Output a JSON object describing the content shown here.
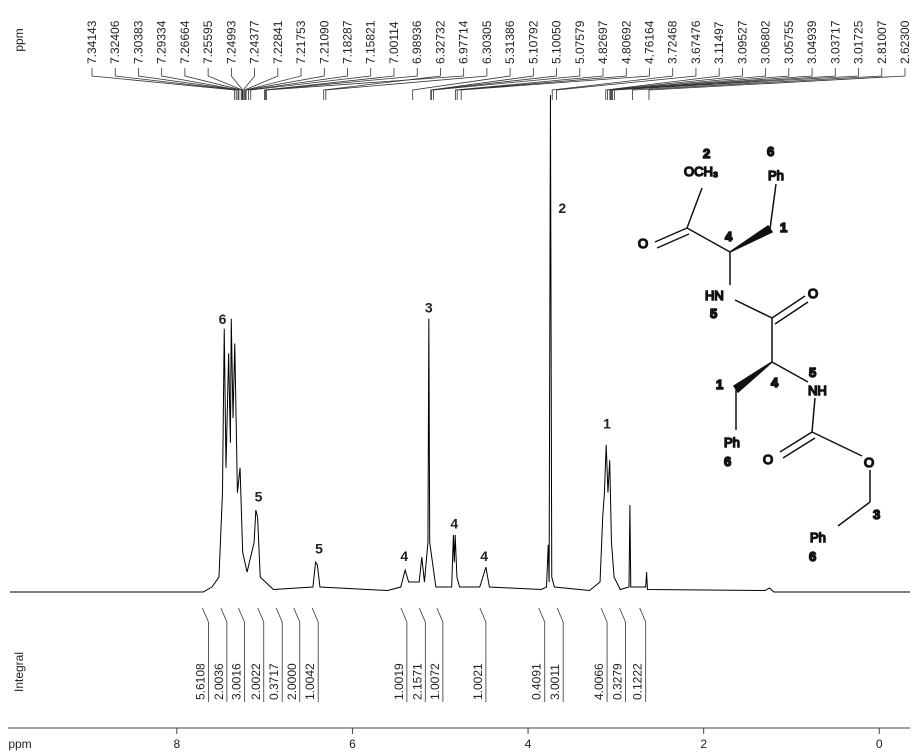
{
  "chart_data": {
    "type": "nmr",
    "xlabel": "ppm",
    "peak_axis_label": "ppm",
    "integral_label": "Integral",
    "xlim": [
      9.9,
      -0.35
    ],
    "ylim": [
      0,
      100
    ],
    "xticks": [
      8,
      6,
      4,
      2,
      0
    ],
    "color": "#000000",
    "x": [
      9.9,
      7.7,
      7.6,
      7.52,
      7.48,
      7.46,
      7.44,
      7.41,
      7.39,
      7.38,
      7.36,
      7.34,
      7.31,
      7.28,
      7.25,
      7.2,
      7.12,
      7.1,
      7.08,
      7.05,
      6.9,
      6.45,
      6.42,
      6.4,
      6.37,
      5.6,
      5.45,
      5.4,
      5.36,
      5.24,
      5.21,
      5.18,
      5.14,
      5.13,
      5.12,
      5.05,
      4.87,
      4.85,
      4.84,
      4.83,
      4.81,
      4.78,
      4.55,
      4.48,
      4.44,
      3.85,
      3.79,
      3.77,
      3.76,
      3.745,
      3.73,
      3.7,
      3.3,
      3.18,
      3.15,
      3.13,
      3.11,
      3.09,
      3.07,
      3.05,
      3.02,
      2.95,
      2.85,
      2.84,
      2.83,
      2.66,
      2.65,
      2.64,
      1.3,
      1.25,
      1.2,
      -0.35
    ],
    "values": [
      0,
      0,
      1,
      3,
      20,
      53,
      25,
      48,
      30,
      55,
      35,
      50,
      20,
      25,
      8,
      4,
      10,
      16.5,
      15,
      3,
      0.5,
      1,
      6,
      5.5,
      1,
      0.3,
      1,
      4.4,
      2,
      2,
      7,
      2,
      10,
      55,
      10,
      1,
      1,
      11.5,
      6,
      11.5,
      3,
      1,
      1,
      5,
      1,
      0.5,
      1,
      9.5,
      2,
      100,
      3,
      1,
      0.3,
      2,
      15,
      20,
      29.6,
      20,
      26.5,
      10,
      3,
      0.5,
      1,
      17.5,
      1,
      1,
      4,
      0.5,
      0.3,
      0.8,
      0,
      0
    ],
    "peak_labels": [
      7.34143,
      7.32406,
      7.30383,
      7.29334,
      7.26664,
      7.25595,
      7.24993,
      7.24377,
      7.22841,
      7.21753,
      {
        "value": 7.2109,
        "label": "7.21090"
      },
      7.18287,
      7.15821,
      7.00114,
      6.98936,
      6.32732,
      6.97714,
      6.30305,
      5.31386,
      5.10792,
      {
        "value": 5.1005,
        "label": "5.10050"
      },
      5.07579,
      4.82697,
      4.80692,
      4.76164,
      3.72468,
      3.67476,
      3.11497,
      3.09527,
      3.06802,
      3.05755,
      3.04939,
      3.03717,
      3.01725,
      2.81007,
      {
        "value": 2.623,
        "label": "2.62300"
      }
    ],
    "integrals": [
      5.6108,
      2.0036,
      3.0016,
      2.0022,
      0.3717,
      {
        "value": 2,
        "label": "2.0000"
      },
      1.0042,
      1.0019,
      2.1571,
      1.0072,
      1.0021,
      0.4091,
      3.0011,
      4.0066,
      0.3279,
      0.1222
    ],
    "integral_x": [
      7.64,
      7.43,
      7.23,
      7.01,
      6.8,
      6.6,
      6.39,
      5.38,
      5.17,
      4.97,
      4.48,
      3.81,
      3.6,
      3.1,
      2.89,
      2.66
    ],
    "annotations": [
      {
        "text": "6",
        "x": 7.48,
        "y": 54.7
      },
      {
        "text": "5",
        "x": 7.07,
        "y": 19
      },
      {
        "text": "5",
        "x": 6.38,
        "y": 8.5
      },
      {
        "text": "4",
        "x": 5.41,
        "y": 7
      },
      {
        "text": "3",
        "x": 5.13,
        "y": 57
      },
      {
        "text": "4",
        "x": 4.84,
        "y": 13.5
      },
      {
        "text": "4",
        "x": 4.5,
        "y": 7
      },
      {
        "text": "2",
        "x": 3.61,
        "y": 77
      },
      {
        "text": "1",
        "x": 3.1,
        "y": 33.6
      }
    ]
  },
  "structure": {
    "labels": [
      "2",
      "OCH₃",
      "6",
      "Ph",
      "1",
      "O",
      "4",
      "HN",
      "5",
      "O",
      "1",
      "4",
      "5",
      "NH",
      "Ph",
      "6",
      "O",
      "O",
      "3",
      "Ph",
      "6"
    ]
  }
}
